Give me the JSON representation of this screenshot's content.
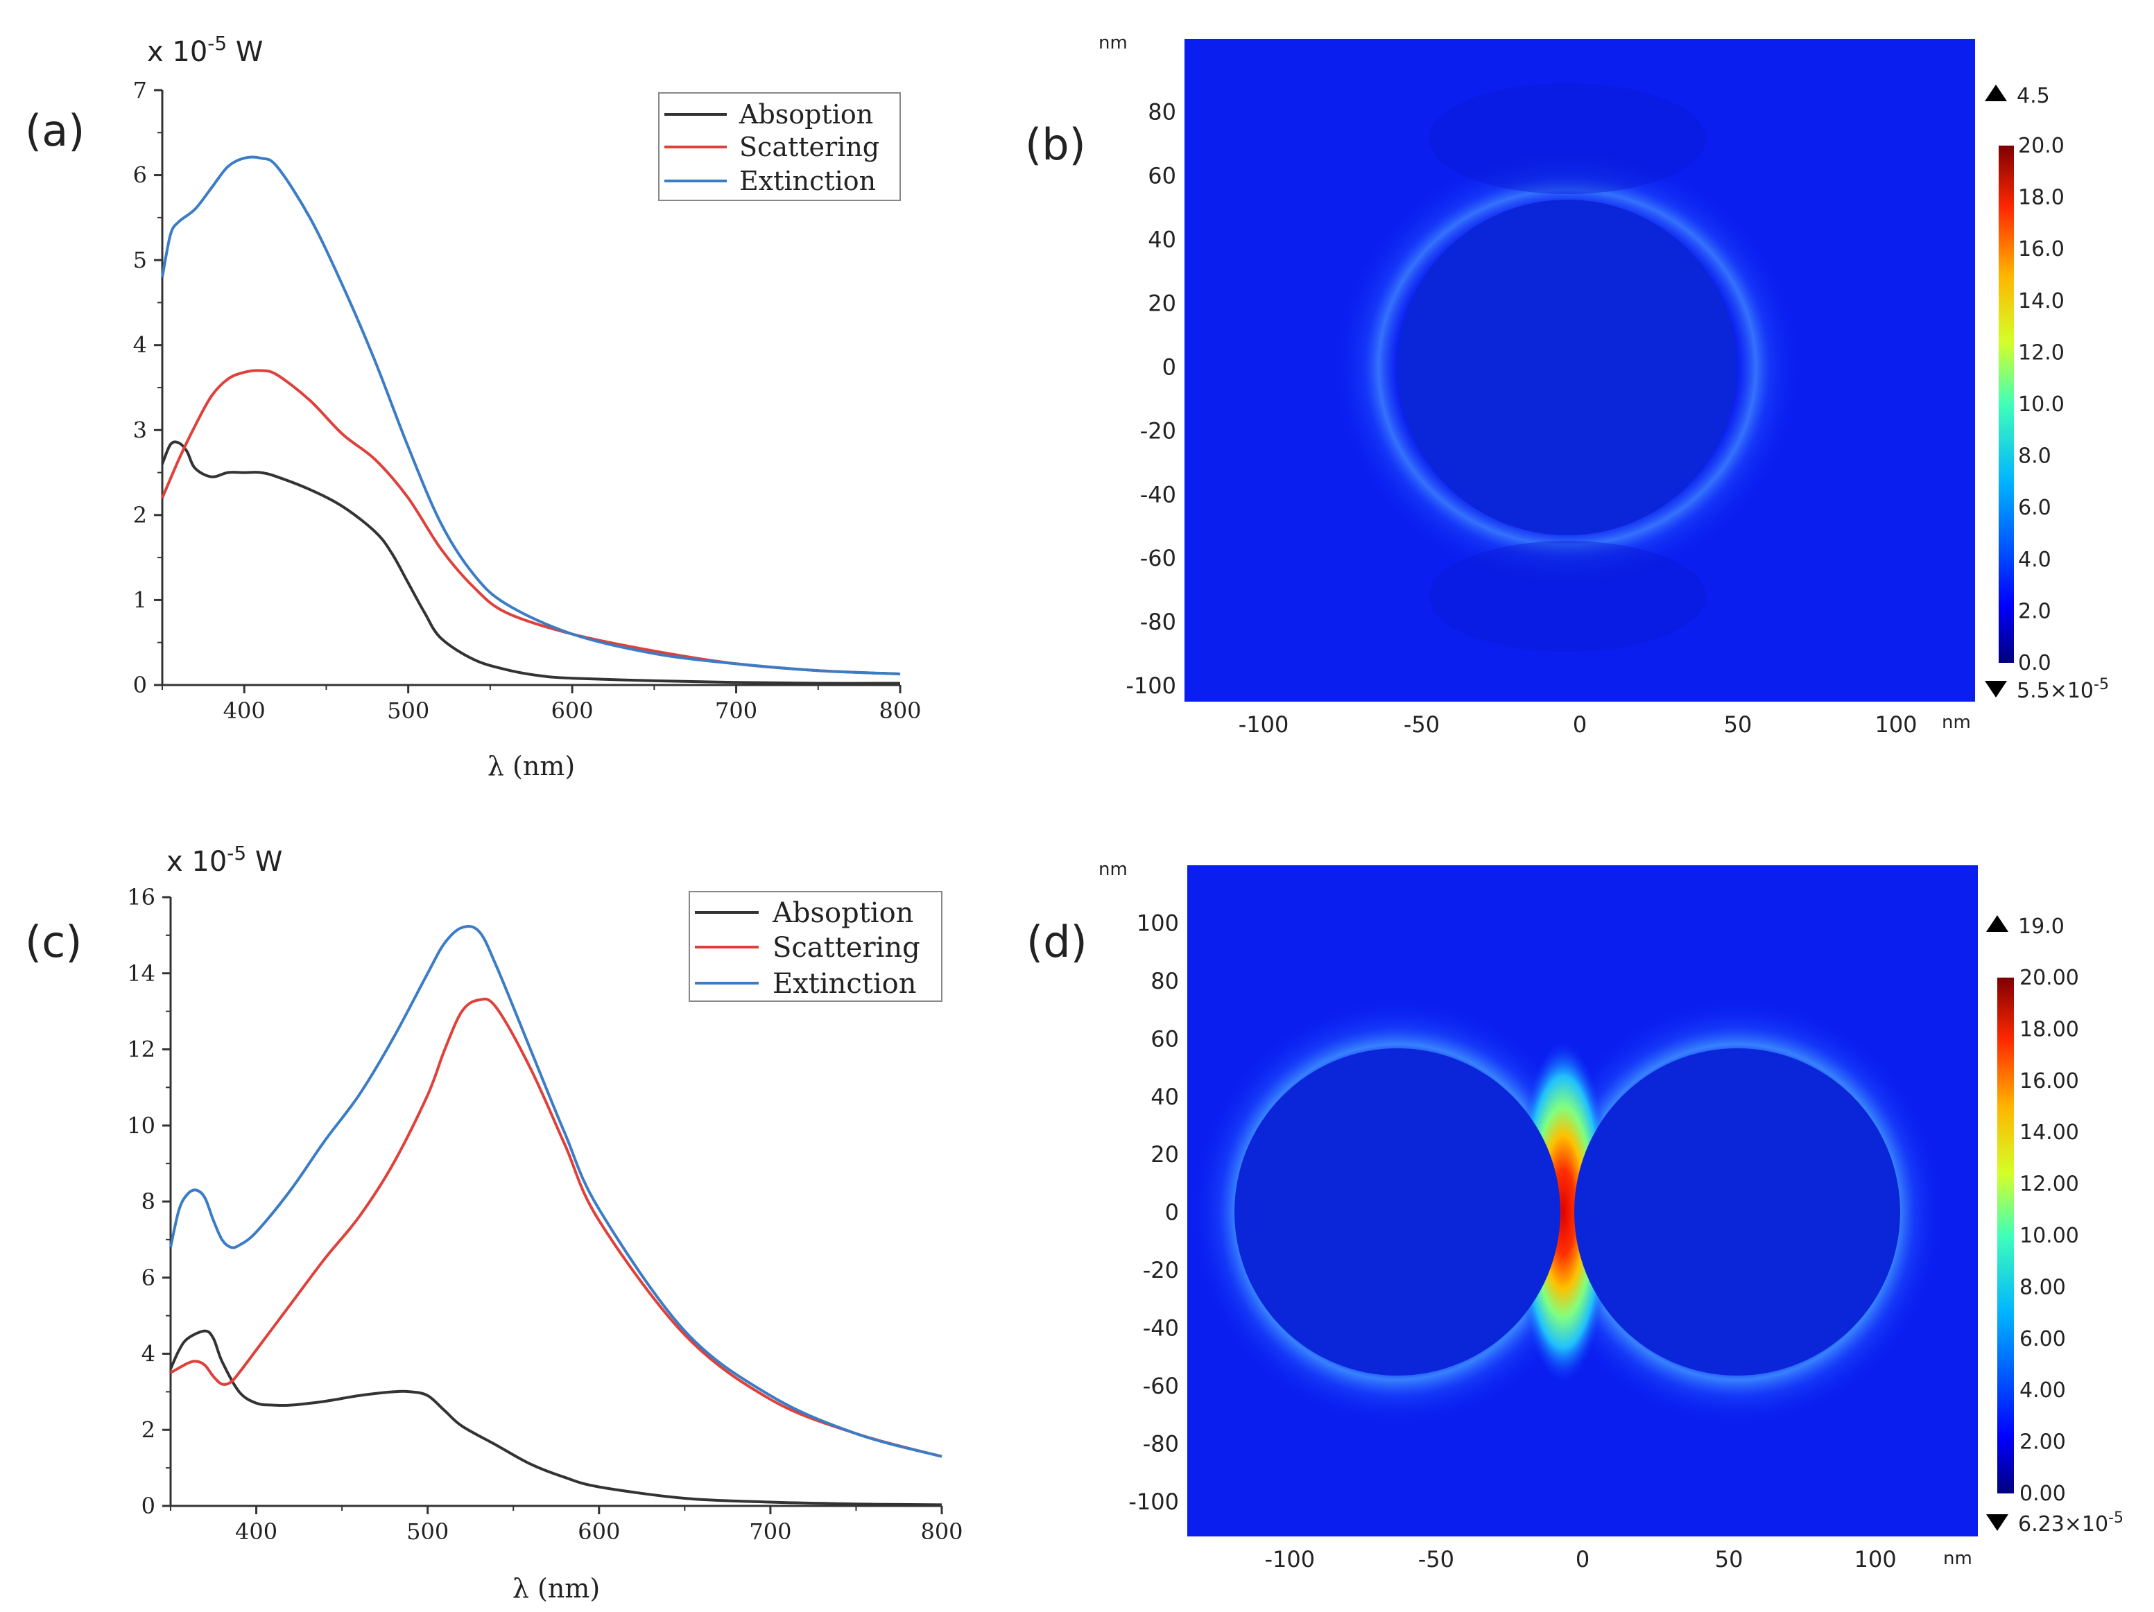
{
  "colors": {
    "absorption": "#333333",
    "scattering": "#e0403a",
    "extinction": "#3a7cc6",
    "axis": "#333333"
  },
  "chart_data": [
    {
      "id": "a",
      "panel_label": "(a)",
      "type": "line",
      "unit_label": "x 10",
      "unit_exp": "-5",
      "unit_suffix": " W",
      "xlabel": "λ (nm)",
      "ylabel": "",
      "xlim": [
        350,
        800
      ],
      "ylim": [
        0,
        7
      ],
      "xticks": [
        400,
        500,
        600,
        700,
        800
      ],
      "yticks": [
        0,
        1,
        2,
        3,
        4,
        5,
        6,
        7
      ],
      "grid": false,
      "legend": "top-right",
      "series": [
        {
          "name": "Absoption",
          "key": "absorption",
          "x": [
            350,
            355,
            360,
            365,
            370,
            380,
            390,
            400,
            410,
            420,
            440,
            460,
            480,
            490,
            500,
            510,
            520,
            540,
            560,
            580,
            600,
            650,
            700,
            750,
            800
          ],
          "y": [
            2.6,
            2.83,
            2.85,
            2.75,
            2.55,
            2.45,
            2.5,
            2.5,
            2.5,
            2.45,
            2.3,
            2.1,
            1.8,
            1.55,
            1.2,
            0.85,
            0.55,
            0.3,
            0.18,
            0.11,
            0.08,
            0.05,
            0.03,
            0.02,
            0.02
          ]
        },
        {
          "name": "Scattering",
          "key": "scattering",
          "x": [
            350,
            360,
            370,
            380,
            390,
            400,
            410,
            420,
            440,
            460,
            480,
            500,
            520,
            540,
            560,
            600,
            650,
            700,
            750,
            800
          ],
          "y": [
            2.2,
            2.65,
            3.05,
            3.4,
            3.6,
            3.68,
            3.7,
            3.65,
            3.35,
            2.95,
            2.65,
            2.2,
            1.6,
            1.15,
            0.85,
            0.6,
            0.4,
            0.25,
            0.17,
            0.13
          ]
        },
        {
          "name": "Extinction",
          "key": "extinction",
          "x": [
            350,
            355,
            360,
            370,
            380,
            390,
            400,
            410,
            420,
            440,
            460,
            480,
            500,
            520,
            540,
            560,
            600,
            650,
            700,
            750,
            800
          ],
          "y": [
            4.8,
            5.3,
            5.45,
            5.6,
            5.85,
            6.1,
            6.2,
            6.2,
            6.1,
            5.5,
            4.7,
            3.8,
            2.8,
            1.9,
            1.3,
            0.95,
            0.6,
            0.37,
            0.25,
            0.17,
            0.13
          ]
        }
      ]
    },
    {
      "id": "b",
      "panel_label": "(b)",
      "type": "heatmap",
      "axis_unit": "nm",
      "xticks": [
        -100,
        -50,
        0,
        50,
        100
      ],
      "yticks": [
        80,
        60,
        40,
        20,
        0,
        -20,
        -40,
        -60,
        -80,
        -100
      ],
      "xlim": [
        -125,
        125
      ],
      "ylim": [
        -105,
        103
      ],
      "geometry": {
        "spheres": [
          {
            "cx": 0,
            "cy": 0,
            "r": 53
          }
        ]
      },
      "colorbar": {
        "min": 0,
        "max": 20,
        "ticks": [
          "20.0",
          "18.0",
          "16.0",
          "14.0",
          "12.0",
          "10.0",
          "8.0",
          "6.0",
          "4.0",
          "2.0",
          "0.0"
        ],
        "max_marker": "4.5",
        "min_marker": "5.5×10",
        "min_marker_exp": "-5"
      }
    },
    {
      "id": "c",
      "panel_label": "(c)",
      "type": "line",
      "unit_label": "x 10",
      "unit_exp": "-5",
      "unit_suffix": " W",
      "xlabel": "λ (nm)",
      "ylabel": "",
      "xlim": [
        350,
        800
      ],
      "ylim": [
        0,
        16
      ],
      "xticks": [
        400,
        500,
        600,
        700,
        800
      ],
      "yticks": [
        0,
        2,
        4,
        6,
        8,
        10,
        12,
        14,
        16
      ],
      "grid": false,
      "legend": "top-right",
      "series": [
        {
          "name": "Absoption",
          "key": "absorption",
          "x": [
            350,
            355,
            360,
            370,
            375,
            380,
            390,
            400,
            410,
            420,
            440,
            460,
            480,
            490,
            500,
            510,
            520,
            540,
            560,
            580,
            600,
            650,
            700,
            750,
            800
          ],
          "y": [
            3.6,
            4.1,
            4.4,
            4.6,
            4.4,
            3.8,
            3.0,
            2.7,
            2.65,
            2.65,
            2.75,
            2.9,
            3.0,
            3.0,
            2.9,
            2.5,
            2.1,
            1.6,
            1.1,
            0.75,
            0.5,
            0.2,
            0.1,
            0.05,
            0.03
          ]
        },
        {
          "name": "Scattering",
          "key": "scattering",
          "x": [
            350,
            360,
            365,
            370,
            375,
            380,
            385,
            390,
            400,
            420,
            440,
            460,
            480,
            500,
            510,
            520,
            530,
            540,
            560,
            580,
            600,
            650,
            700,
            750,
            800
          ],
          "y": [
            3.5,
            3.75,
            3.8,
            3.7,
            3.4,
            3.2,
            3.25,
            3.5,
            4.1,
            5.3,
            6.5,
            7.6,
            9.0,
            10.8,
            12.0,
            13.0,
            13.3,
            13.1,
            11.5,
            9.5,
            7.5,
            4.5,
            2.8,
            1.9,
            1.3
          ]
        },
        {
          "name": "Extinction",
          "key": "extinction",
          "x": [
            350,
            355,
            360,
            365,
            370,
            375,
            380,
            385,
            390,
            400,
            420,
            440,
            460,
            480,
            500,
            510,
            520,
            530,
            540,
            560,
            580,
            600,
            650,
            700,
            750,
            800
          ],
          "y": [
            6.8,
            7.8,
            8.2,
            8.3,
            8.1,
            7.5,
            7.0,
            6.8,
            6.85,
            7.2,
            8.3,
            9.6,
            10.8,
            12.3,
            14.0,
            14.8,
            15.2,
            15.1,
            14.2,
            12.0,
            9.8,
            7.8,
            4.6,
            2.9,
            1.9,
            1.3
          ]
        }
      ]
    },
    {
      "id": "d",
      "panel_label": "(d)",
      "type": "heatmap",
      "axis_unit": "nm",
      "xticks": [
        -100,
        -50,
        0,
        50,
        100
      ],
      "yticks": [
        100,
        80,
        60,
        40,
        20,
        0,
        -20,
        -40,
        -60,
        -80,
        -100
      ],
      "xlim": [
        -135,
        135
      ],
      "ylim": [
        -112,
        120
      ],
      "geometry": {
        "spheres": [
          {
            "cx": -58,
            "cy": 0,
            "r": 56
          },
          {
            "cx": 58,
            "cy": 0,
            "r": 56
          }
        ]
      },
      "colorbar": {
        "min": 0,
        "max": 20,
        "ticks": [
          "20.00",
          "18.00",
          "16.00",
          "14.00",
          "12.00",
          "10.00",
          "8.00",
          "6.00",
          "4.00",
          "2.00",
          "0.00"
        ],
        "max_marker": "19.0",
        "min_marker": "6.23×10",
        "min_marker_exp": "-5"
      }
    }
  ]
}
